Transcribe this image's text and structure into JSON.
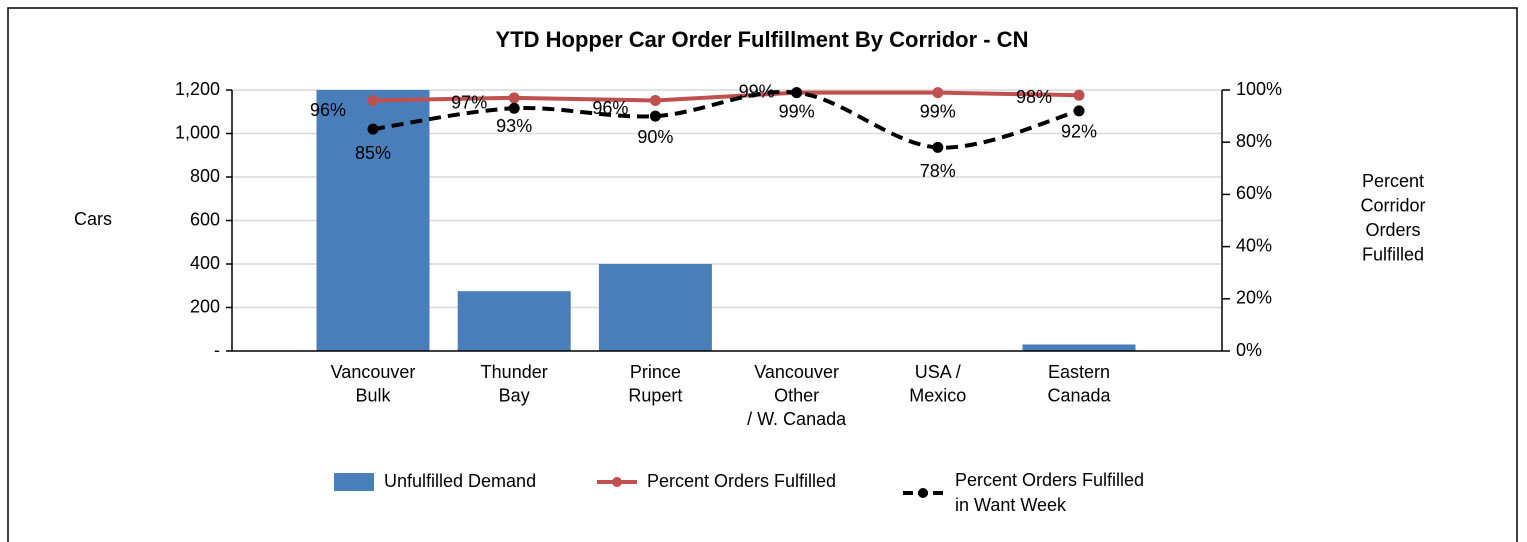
{
  "chart_data": {
    "type": "bar_line",
    "title": "YTD Hopper Car Order Fulfillment By Corridor - CN",
    "ylabel": "Cars",
    "y2label": "Percent\nCorridor\nOrders\nFulfilled",
    "categories": [
      "Vancouver\nBulk",
      "Thunder\nBay",
      "Prince\nRupert",
      "Vancouver\nOther\n/ W. Canada",
      "USA /\nMexico",
      "Eastern\nCanada"
    ],
    "ylim": [
      0,
      1200
    ],
    "yticks": [
      {
        "value": 0,
        "label": "-"
      },
      200,
      400,
      600,
      800,
      {
        "value": 1000,
        "label": "1,000"
      },
      {
        "value": 1200,
        "label": "1,200"
      }
    ],
    "y2lim": [
      0,
      100
    ],
    "y2ticks": [
      {
        "value": 0,
        "label": "0%"
      },
      {
        "value": 20,
        "label": "20%"
      },
      {
        "value": 40,
        "label": "40%"
      },
      {
        "value": 60,
        "label": "60%"
      },
      {
        "value": 80,
        "label": "80%"
      },
      {
        "value": 100,
        "label": "100%"
      }
    ],
    "grid": true,
    "series": [
      {
        "name": "Unfulfilled Demand",
        "type": "bar",
        "color": "#4a7ebb",
        "values": [
          1200,
          275,
          400,
          0,
          0,
          30
        ]
      },
      {
        "name": "Percent Orders Fulfilled",
        "type": "line",
        "axis": "y2",
        "color": "#c0504d",
        "values": [
          96,
          97,
          96,
          99,
          99,
          98
        ],
        "value_labels": [
          "96%",
          "97%",
          "96%",
          "99%",
          "99%",
          "98%"
        ]
      },
      {
        "name": "Percent Orders Fulfilled\nin Want Week",
        "type": "line",
        "axis": "y2",
        "color": "#000000",
        "dashed": true,
        "values": [
          85,
          93,
          90,
          99,
          78,
          92
        ],
        "value_labels": [
          "85%",
          "93%",
          "90%",
          "99%",
          "78%",
          "92%"
        ]
      }
    ]
  }
}
